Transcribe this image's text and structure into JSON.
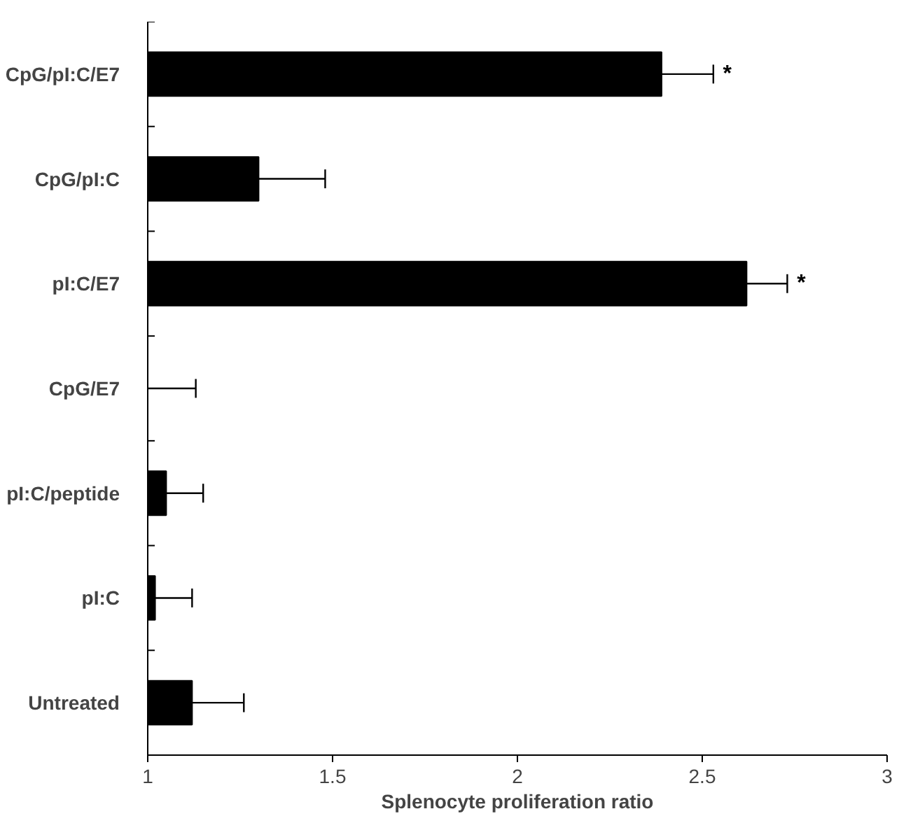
{
  "chart_data": {
    "type": "bar",
    "orientation": "horizontal",
    "xlabel": "Splenocyte proliferation ratio",
    "categories": [
      "CpG/pI:C/E7",
      "CpG/pI:C",
      "pI:C/E7",
      "CpG/E7",
      "pI:C/peptide",
      "pI:C",
      "Untreated"
    ],
    "values": [
      2.39,
      1.3,
      2.62,
      1.0,
      1.05,
      1.02,
      1.12
    ],
    "errors": [
      [
        2.39,
        2.53
      ],
      [
        1.3,
        1.48
      ],
      [
        2.62,
        2.73
      ],
      [
        1.0,
        1.13
      ],
      [
        1.05,
        1.15
      ],
      [
        1.02,
        1.12
      ],
      [
        1.12,
        1.26
      ]
    ],
    "color": "#000000",
    "xlim": [
      1,
      3
    ],
    "xticks": [
      1,
      1.5,
      2,
      2.5,
      3
    ],
    "value_labels": [
      "*",
      null,
      "*",
      null,
      null,
      null,
      null
    ],
    "grid": false
  }
}
